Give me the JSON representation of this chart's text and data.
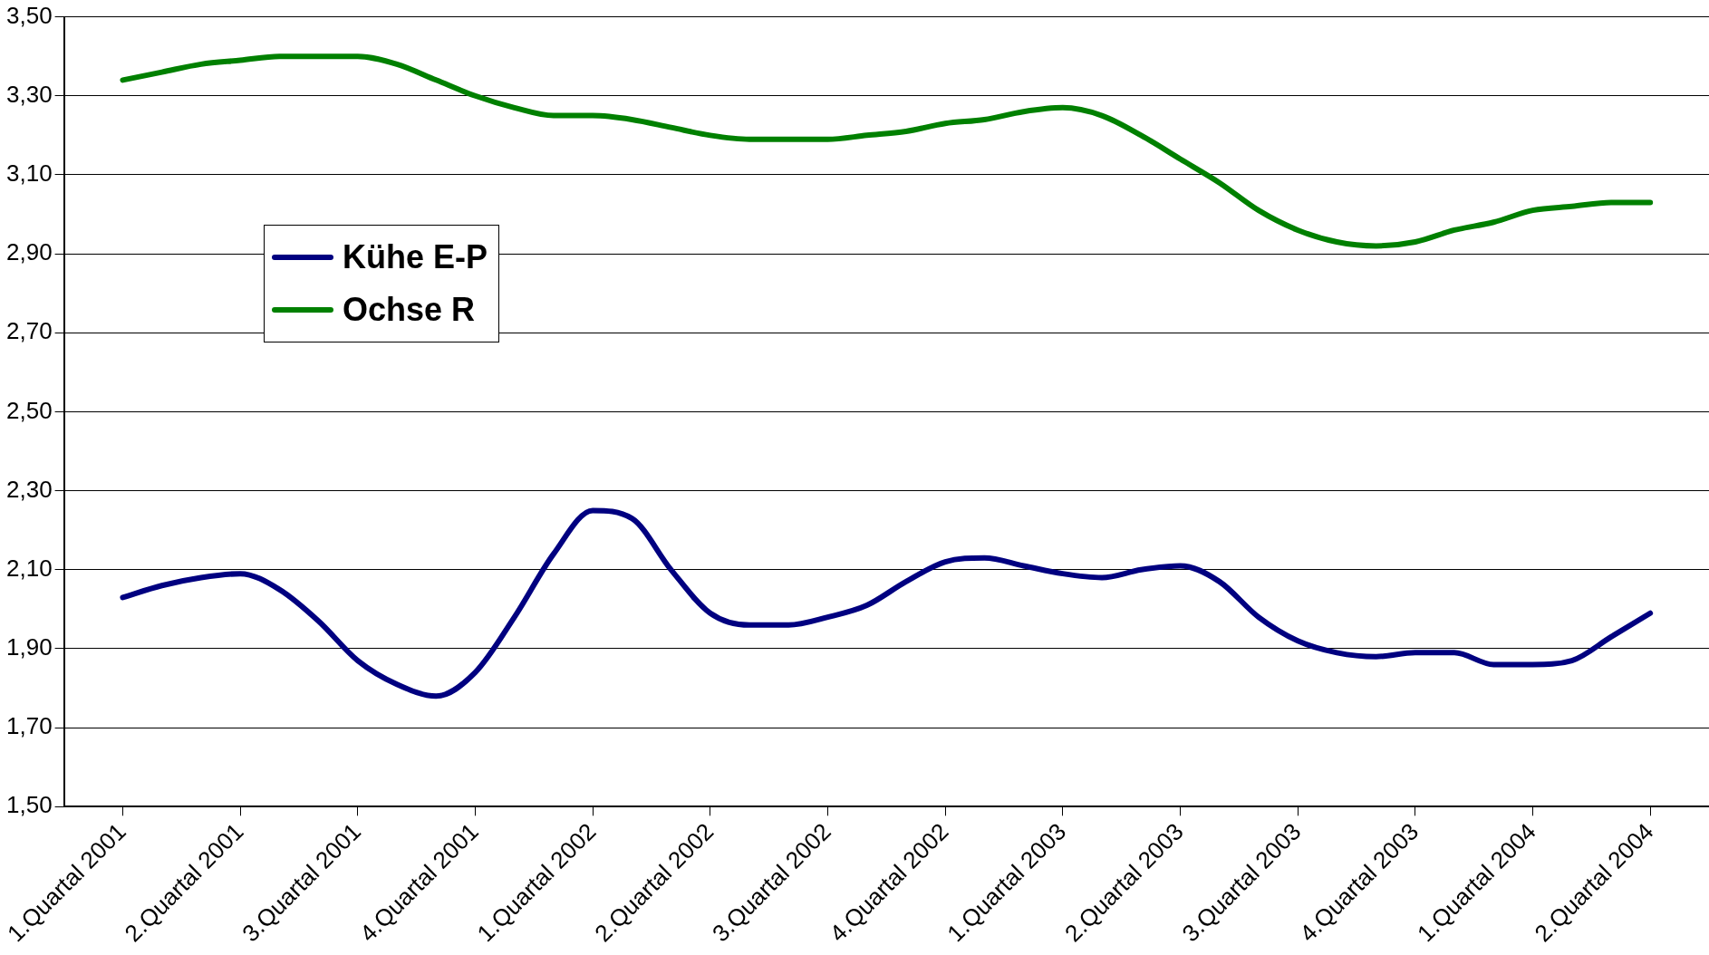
{
  "chart_data": {
    "type": "line",
    "categories": [
      "1.Quartal 2001",
      null,
      null,
      "2.Quartal 2001",
      null,
      null,
      "3.Quartal 2001",
      null,
      null,
      "4.Quartal 2001",
      null,
      null,
      "1.Quartal 2002",
      null,
      null,
      "2.Quartal 2002",
      null,
      null,
      "3.Quartal 2002",
      null,
      null,
      "4.Quartal 2002",
      null,
      null,
      "1.Quartal 2003",
      null,
      null,
      "2.Quartal 2003",
      null,
      null,
      "3.Quartal 2003",
      null,
      null,
      "4.Quartal 2003",
      null,
      null,
      "1.Quartal 2004",
      null,
      null,
      "2.Quartal 2004"
    ],
    "series": [
      {
        "name": "Kühe E-P",
        "color": "#000080",
        "values": [
          2.03,
          2.06,
          2.08,
          2.09,
          2.05,
          1.97,
          1.87,
          1.81,
          1.78,
          1.84,
          1.98,
          2.14,
          2.25,
          2.23,
          2.1,
          1.99,
          1.96,
          1.96,
          1.98,
          2.01,
          2.07,
          2.12,
          2.13,
          2.11,
          2.09,
          2.08,
          2.1,
          2.11,
          2.07,
          1.98,
          1.92,
          1.89,
          1.88,
          1.89,
          1.89,
          1.86,
          1.86,
          1.87,
          1.93,
          1.99
        ]
      },
      {
        "name": "Ochse R",
        "color": "#008000",
        "values": [
          3.34,
          3.36,
          3.38,
          3.39,
          3.4,
          3.4,
          3.4,
          3.38,
          3.34,
          3.3,
          3.27,
          3.25,
          3.25,
          3.24,
          3.22,
          3.2,
          3.19,
          3.19,
          3.19,
          3.2,
          3.21,
          3.23,
          3.24,
          3.26,
          3.27,
          3.25,
          3.2,
          3.14,
          3.08,
          3.01,
          2.96,
          2.93,
          2.92,
          2.93,
          2.96,
          2.98,
          3.01,
          3.02,
          3.03,
          3.03
        ]
      }
    ],
    "ylim": [
      1.5,
      3.5
    ],
    "yticks": [
      {
        "value": 1.5,
        "label": "1,50"
      },
      {
        "value": 1.7,
        "label": "1,70"
      },
      {
        "value": 1.9,
        "label": "1,90"
      },
      {
        "value": 2.1,
        "label": "2,10"
      },
      {
        "value": 2.3,
        "label": "2,30"
      },
      {
        "value": 2.5,
        "label": "2,50"
      },
      {
        "value": 2.7,
        "label": "2,70"
      },
      {
        "value": 2.9,
        "label": "2,90"
      },
      {
        "value": 3.1,
        "label": "3,10"
      },
      {
        "value": 3.3,
        "label": "3,30"
      },
      {
        "value": 3.5,
        "label": "3,50"
      }
    ],
    "grid": "y",
    "legend": "top left",
    "marker": "none",
    "line_style": "solid"
  }
}
